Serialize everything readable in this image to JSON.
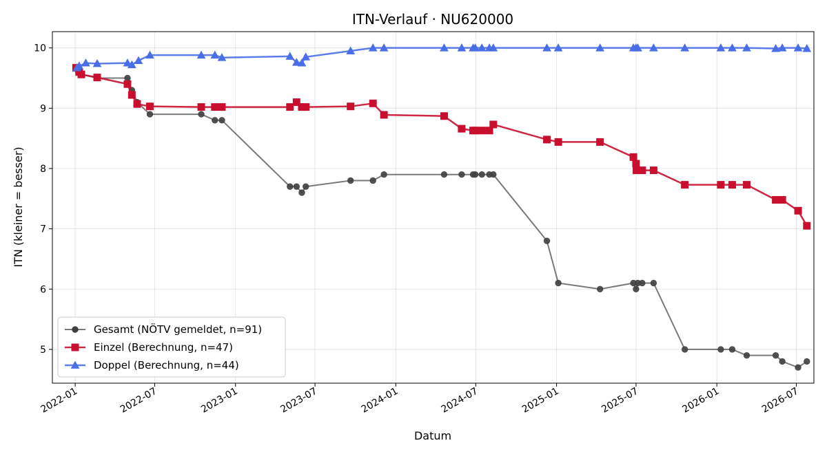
{
  "chart_data": {
    "type": "line",
    "title": "ITN-Verlauf · NU620000",
    "xlabel": "Datum",
    "ylabel": "ITN  (kleiner = besser)",
    "x_type": "date",
    "xlim": [
      "2021-11-10",
      "2026-08-10"
    ],
    "ylim": [
      4.44,
      10.27
    ],
    "x_ticks": [
      "2022-01-01",
      "2022-07-01",
      "2023-01-01",
      "2023-07-01",
      "2024-01-01",
      "2024-07-01",
      "2025-01-01",
      "2025-07-01",
      "2026-01-01",
      "2026-07-01"
    ],
    "x_tick_labels": [
      "2022-01",
      "2022-07",
      "2023-01",
      "2023-07",
      "2024-01",
      "2024-07",
      "2025-01",
      "2025-07",
      "2026-01",
      "2026-07"
    ],
    "y_ticks": [
      5,
      6,
      7,
      8,
      9,
      10
    ],
    "y_tick_labels": [
      "5",
      "6",
      "7",
      "8",
      "9",
      "10"
    ],
    "grid": true,
    "legend_position": "lower-left",
    "series": [
      {
        "name": "Gesamt (NÖTV gemeldet, n=91)",
        "color": "#404040",
        "marker": "circle",
        "points": [
          [
            "2022-01-03",
            9.67
          ],
          [
            "2022-01-08",
            9.6
          ],
          [
            "2022-01-15",
            9.56
          ],
          [
            "2022-02-20",
            9.5
          ],
          [
            "2022-04-30",
            9.5
          ],
          [
            "2022-05-10",
            9.3
          ],
          [
            "2022-05-22",
            9.1
          ],
          [
            "2022-06-20",
            8.9
          ],
          [
            "2022-10-15",
            8.9
          ],
          [
            "2022-11-15",
            8.8
          ],
          [
            "2022-12-01",
            8.8
          ],
          [
            "2023-05-05",
            7.7
          ],
          [
            "2023-05-20",
            7.7
          ],
          [
            "2023-06-01",
            7.6
          ],
          [
            "2023-06-10",
            7.7
          ],
          [
            "2023-09-20",
            7.8
          ],
          [
            "2023-11-10",
            7.8
          ],
          [
            "2023-12-05",
            7.9
          ],
          [
            "2024-04-20",
            7.9
          ],
          [
            "2024-05-30",
            7.9
          ],
          [
            "2024-06-25",
            7.9
          ],
          [
            "2024-06-30",
            7.9
          ],
          [
            "2024-07-15",
            7.9
          ],
          [
            "2024-08-01",
            7.9
          ],
          [
            "2024-08-10",
            7.9
          ],
          [
            "2024-12-10",
            6.8
          ],
          [
            "2025-01-05",
            6.1
          ],
          [
            "2025-04-10",
            6.0
          ],
          [
            "2025-06-25",
            6.1
          ],
          [
            "2025-07-01",
            6.0
          ],
          [
            "2025-07-05",
            6.1
          ],
          [
            "2025-07-15",
            6.1
          ],
          [
            "2025-08-10",
            6.1
          ],
          [
            "2025-10-20",
            5.0
          ],
          [
            "2026-01-10",
            5.0
          ],
          [
            "2026-02-05",
            5.0
          ],
          [
            "2026-03-10",
            4.9
          ],
          [
            "2026-05-15",
            4.9
          ],
          [
            "2026-05-30",
            4.8
          ],
          [
            "2026-07-05",
            4.7
          ],
          [
            "2026-07-25",
            4.8
          ]
        ]
      },
      {
        "name": "Einzel (Berechnung, n=47)",
        "color": "#c8102e",
        "marker": "square",
        "points": [
          [
            "2022-01-03",
            9.67
          ],
          [
            "2022-01-10",
            9.6
          ],
          [
            "2022-01-15",
            9.56
          ],
          [
            "2022-02-20",
            9.51
          ],
          [
            "2022-04-30",
            9.4
          ],
          [
            "2022-05-10",
            9.22
          ],
          [
            "2022-05-22",
            9.07
          ],
          [
            "2022-06-20",
            9.03
          ],
          [
            "2022-10-15",
            9.02
          ],
          [
            "2022-11-15",
            9.02
          ],
          [
            "2022-12-01",
            9.02
          ],
          [
            "2023-05-05",
            9.02
          ],
          [
            "2023-05-20",
            9.1
          ],
          [
            "2023-06-01",
            9.02
          ],
          [
            "2023-06-10",
            9.02
          ],
          [
            "2023-09-20",
            9.03
          ],
          [
            "2023-11-10",
            9.08
          ],
          [
            "2023-12-05",
            8.89
          ],
          [
            "2024-04-20",
            8.87
          ],
          [
            "2024-05-30",
            8.66
          ],
          [
            "2024-06-25",
            8.63
          ],
          [
            "2024-06-30",
            8.63
          ],
          [
            "2024-07-15",
            8.63
          ],
          [
            "2024-08-01",
            8.63
          ],
          [
            "2024-08-10",
            8.73
          ],
          [
            "2024-12-10",
            8.48
          ],
          [
            "2025-01-05",
            8.44
          ],
          [
            "2025-04-10",
            8.44
          ],
          [
            "2025-06-25",
            8.19
          ],
          [
            "2025-07-01",
            8.08
          ],
          [
            "2025-07-02",
            7.97
          ],
          [
            "2025-07-15",
            7.97
          ],
          [
            "2025-08-10",
            7.97
          ],
          [
            "2025-10-20",
            7.73
          ],
          [
            "2026-01-10",
            7.73
          ],
          [
            "2026-02-05",
            7.73
          ],
          [
            "2026-03-10",
            7.73
          ],
          [
            "2026-05-15",
            7.48
          ],
          [
            "2026-05-30",
            7.48
          ],
          [
            "2026-07-05",
            7.3
          ],
          [
            "2026-07-25",
            7.05
          ]
        ]
      },
      {
        "name": "Doppel (Berechnung, n=44)",
        "color": "#4a6ee8",
        "marker": "triangle",
        "points": [
          [
            "2022-01-05",
            9.67
          ],
          [
            "2022-01-10",
            9.7
          ],
          [
            "2022-01-25",
            9.75
          ],
          [
            "2022-02-20",
            9.74
          ],
          [
            "2022-04-30",
            9.75
          ],
          [
            "2022-05-10",
            9.72
          ],
          [
            "2022-05-25",
            9.79
          ],
          [
            "2022-06-20",
            9.88
          ],
          [
            "2022-10-15",
            9.88
          ],
          [
            "2022-11-15",
            9.88
          ],
          [
            "2022-12-01",
            9.84
          ],
          [
            "2023-05-05",
            9.86
          ],
          [
            "2023-05-20",
            9.76
          ],
          [
            "2023-06-01",
            9.75
          ],
          [
            "2023-06-10",
            9.85
          ],
          [
            "2023-09-20",
            9.95
          ],
          [
            "2023-11-10",
            10.0
          ],
          [
            "2023-12-05",
            10.0
          ],
          [
            "2024-04-20",
            10.0
          ],
          [
            "2024-05-30",
            10.0
          ],
          [
            "2024-06-25",
            10.0
          ],
          [
            "2024-06-30",
            10.0
          ],
          [
            "2024-07-15",
            10.0
          ],
          [
            "2024-08-01",
            10.0
          ],
          [
            "2024-08-10",
            10.0
          ],
          [
            "2024-12-10",
            10.0
          ],
          [
            "2025-01-05",
            10.0
          ],
          [
            "2025-04-10",
            10.0
          ],
          [
            "2025-06-25",
            10.0
          ],
          [
            "2025-07-01",
            10.0
          ],
          [
            "2025-07-05",
            10.0
          ],
          [
            "2025-08-10",
            10.0
          ],
          [
            "2025-10-20",
            10.0
          ],
          [
            "2026-01-10",
            10.0
          ],
          [
            "2026-02-05",
            10.0
          ],
          [
            "2026-03-10",
            10.0
          ],
          [
            "2026-05-15",
            9.99
          ],
          [
            "2026-05-30",
            10.0
          ],
          [
            "2026-07-05",
            10.0
          ],
          [
            "2026-07-25",
            9.99
          ]
        ]
      }
    ]
  }
}
